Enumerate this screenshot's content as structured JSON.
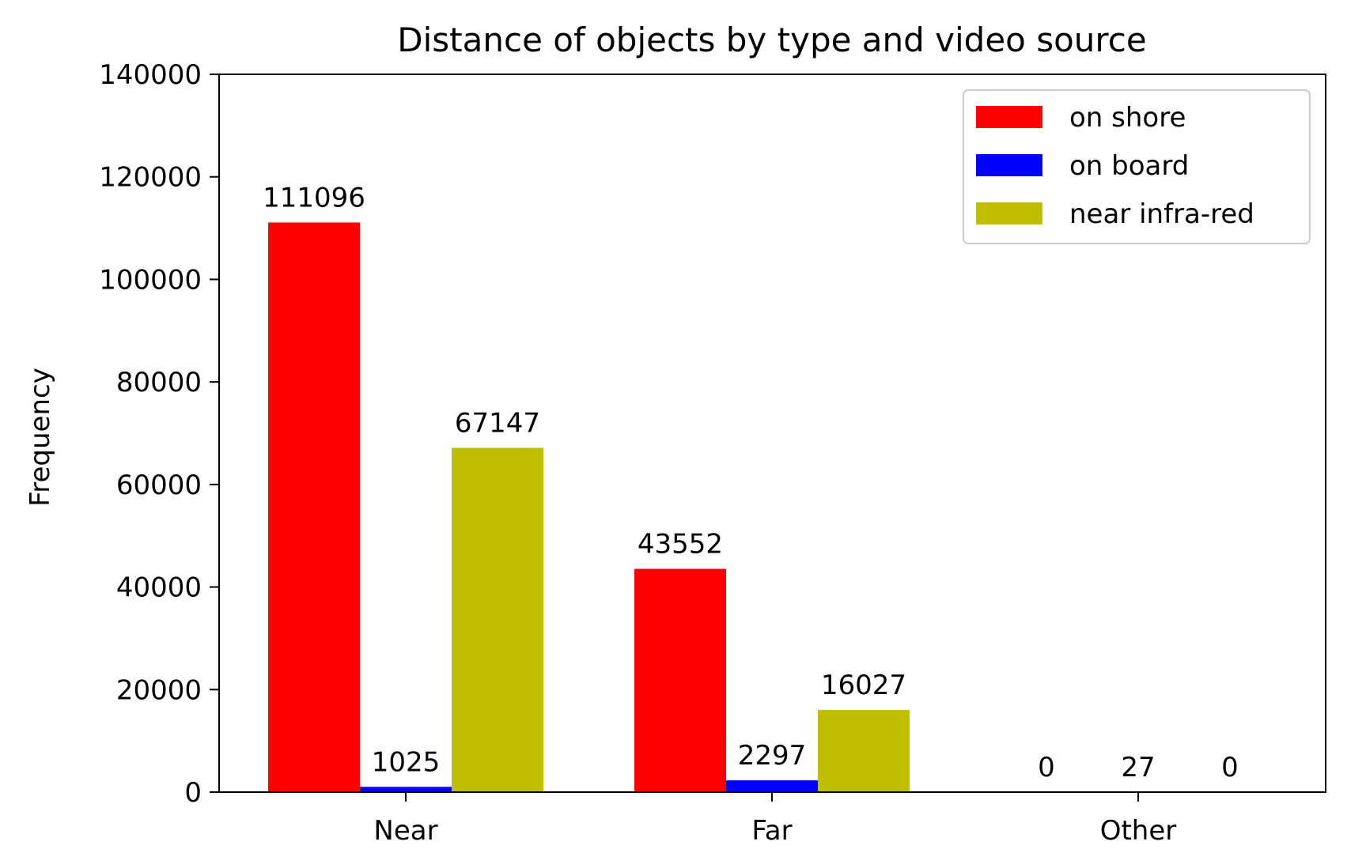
{
  "chart_data": {
    "type": "bar",
    "title": "Distance of objects by type and video source",
    "xlabel": "",
    "ylabel": "Frequency",
    "categories": [
      "Near",
      "Far",
      "Other"
    ],
    "series": [
      {
        "name": "on shore",
        "color": "#ff0000",
        "values": [
          111096,
          43552,
          0
        ]
      },
      {
        "name": "on board",
        "color": "#0000ff",
        "values": [
          1025,
          2297,
          27
        ]
      },
      {
        "name": "near infra-red",
        "color": "#bfbf00",
        "values": [
          67147,
          16027,
          0
        ]
      }
    ],
    "ylim": [
      0,
      140000
    ],
    "yticks": [
      0,
      20000,
      40000,
      60000,
      80000,
      100000,
      120000,
      140000
    ],
    "ytick_labels": [
      "0",
      "20000",
      "40000",
      "60000",
      "80000",
      "100000",
      "120000",
      "140000"
    ],
    "data_labels": [
      [
        "111096",
        "43552",
        "0"
      ],
      [
        "1025",
        "2297",
        "27"
      ],
      [
        "67147",
        "16027",
        "0"
      ]
    ],
    "grid": false,
    "legend_position": "top-right"
  }
}
